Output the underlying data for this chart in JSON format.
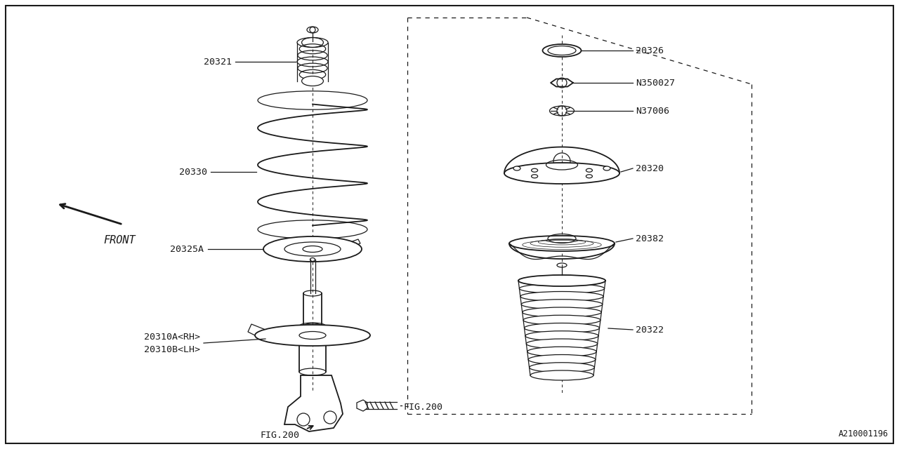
{
  "bg_color": "#ffffff",
  "line_color": "#1a1a1a",
  "catalog_id": "A210001196",
  "fig_width": 12.8,
  "fig_height": 6.4,
  "dpi": 100,
  "parts": {
    "bump_stop_label": "20321",
    "spring_label": "20330",
    "seat_label": "20325A",
    "strut_label1": "20310A<RH>",
    "strut_label2": "20310B<LH>",
    "fig200_label": "FIG.200",
    "cap_label": "20326",
    "nut1_label": "N350027",
    "nut2_label": "N37006",
    "mount_label": "20320",
    "bearing_label": "20382",
    "boot_label": "20322"
  },
  "front_text": "FRONT",
  "font_size": 9.5
}
